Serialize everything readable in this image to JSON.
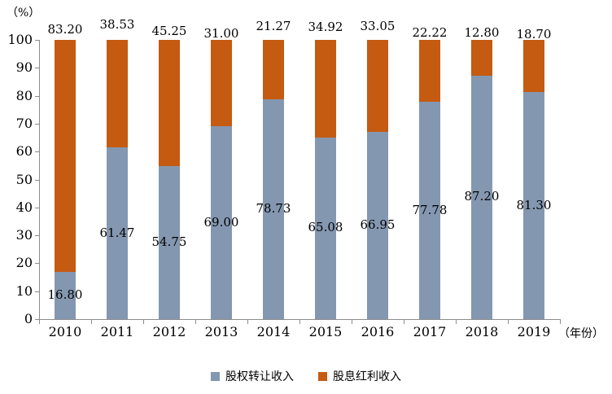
{
  "chart_data": {
    "type": "bar",
    "stacked": true,
    "title": "",
    "ylabel": "（%）",
    "xlabel": "（年份）",
    "ylim": [
      0,
      100
    ],
    "ytick_step": 10,
    "grid": false,
    "legend_position": "bottom",
    "categories": [
      "2010",
      "2011",
      "2012",
      "2013",
      "2014",
      "2015",
      "2016",
      "2017",
      "2018",
      "2019"
    ],
    "series": [
      {
        "key": "equity-transfer-income",
        "name": "股权转让收入",
        "color": "#8497B0",
        "values": [
          "16.80",
          "61.47",
          "54.75",
          "69.00",
          "78.73",
          "65.08",
          "66.95",
          "77.78",
          "87.20",
          "81.30"
        ]
      },
      {
        "key": "dividend-income",
        "name": "股息红利收入",
        "color": "#C55A11",
        "values": [
          "83.20",
          "38.53",
          "45.25",
          "31.00",
          "21.27",
          "34.92",
          "33.05",
          "22.22",
          "12.80",
          "18.70"
        ]
      }
    ],
    "layout_hints": {
      "top_label_dy": [
        0,
        -6,
        2,
        5,
        -4,
        -3,
        -4,
        4,
        4,
        6
      ]
    }
  }
}
